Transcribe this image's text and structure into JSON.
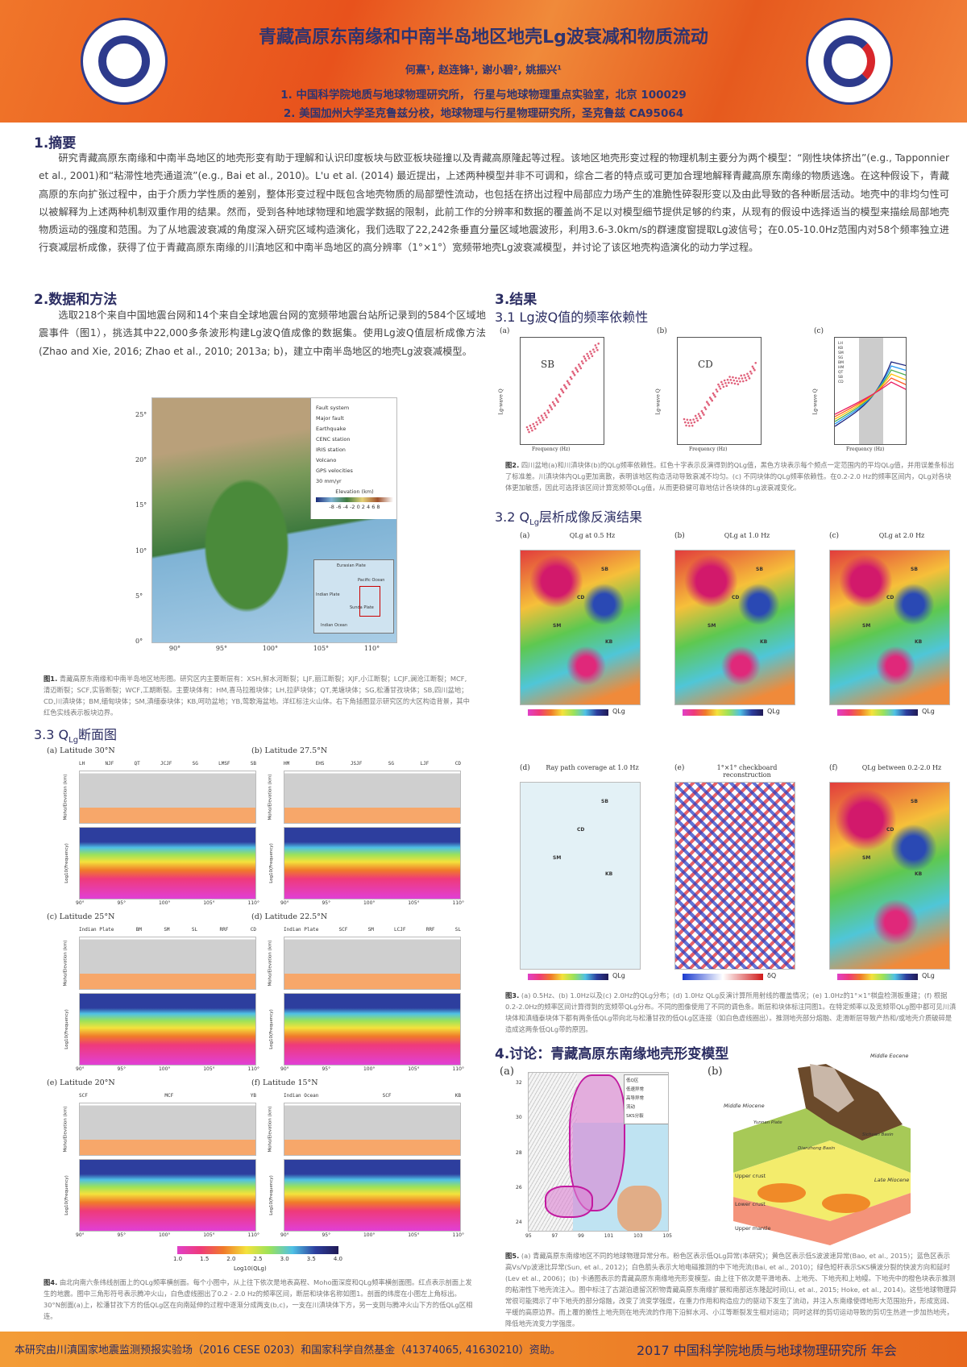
{
  "header": {
    "title": "青藏高原东南缘和中南半岛地区地壳Lg波衰减和物质流动",
    "authors": "何熹¹, 赵连锋¹, 谢小碧², 姚振兴¹",
    "affiliation1": "1. 中国科学院地质与地球物理研究所， 行星与地球物理重点实验室，北京 100029",
    "affiliation2": "2. 美国加州大学圣克鲁兹分校，地球物理与行星物理研究所，圣克鲁兹 CA95064",
    "logo_left": "中国科学院地质与地球物理研究所 INSTITUTE OF GEOLOGY AND GEOPHYSICS CAS",
    "logo_right": "中国科学院地球与行星物理重点实验室 Key Laboratory of Earth and Planetary Physics CAS"
  },
  "abstract": {
    "heading": "1.摘要",
    "text": "研究青藏高原东南缘和中南半岛地区的地壳形变有助于理解和认识印度板块与欧亚板块碰撞以及青藏高原隆起等过程。该地区地壳形变过程的物理机制主要分为两个模型：“刚性块体挤出”(e.g., Tapponnier et al., 2001)和“粘滞性地壳通道流”(e.g., Bai et al., 2010)。L'u et al. (2014) 最近提出，上述两种模型并非不可调和，综合二者的特点或可更加合理地解释青藏高原东南缘的物质逃逸。在这种假设下，青藏高原的东向扩张过程中，由于介质力学性质的差别，整体形变过程中既包含地壳物质的局部塑性流动，也包括在挤出过程中局部应力场产生的准脆性碎裂形变以及由此导致的各种断层活动。地壳中的非均匀性可以被解释为上述两种机制双重作用的结果。然而，受到各种地球物理和地震学数据的限制，此前工作的分辨率和数据的覆盖尚不足以对模型细节提供足够的约束，从现有的假设中选择适当的模型来描绘局部地壳物质运动的强度和范围。为了从地震波衰减的角度深入研究区域构造演化，我们选取了22,242条垂直分量区域地震波形，利用3.6-3.0km/s的群速度窗提取Lg波信号；在0.05-10.0Hz范围内对58个频率独立进行衰减层析成像，获得了位于青藏高原东南缘的川滇地区和中南半岛地区的高分辨率（1°×1°）宽频带地壳Lg波衰减模型，并讨论了该区地壳构造演化的动力学过程。"
  },
  "methods": {
    "heading": "2.数据和方法",
    "text": "选取218个来自中国地震台网和14个来自全球地震台网的宽频带地震台站所记录到的584个区域地震事件（图1），挑选其中22,000多条波形构建Lg波Q值成像的数据集。使用Lg波Q值层析成像方法(Zhao and Xie, 2016; Zhao et al., 2010; 2013a; b)，建立中南半岛地区的地壳Lg波衰减模型。"
  },
  "fig1": {
    "legend": [
      "Fault system",
      "Major fault",
      "Earthquake",
      "CENC station",
      "IRIS station",
      "Volcano",
      "GPS velocities"
    ],
    "elev_label": "Elevation (km)",
    "elev_ticks": "-8 -6 -4 -2 0 2 4 6 8",
    "gps_scale": "30 mm/yr",
    "lon_ticks": [
      "90°",
      "95°",
      "100°",
      "105°",
      "110°"
    ],
    "lat_ticks": [
      "25°",
      "20°",
      "15°",
      "10°",
      "5°",
      "0°"
    ],
    "inset_labels": [
      "Eurasian Plate",
      "Indian Plate",
      "Sunda Plate",
      "Pacific Ocean",
      "Indian Ocean"
    ],
    "caption_label": "图1.",
    "caption": "青藏高原东南缘和中南半岛地区地形图。研究区内主要断层有：XSH,鲜水河断裂；LJF,丽江断裂；XJF,小江断裂；LCJF,澜沧江断裂；MCF,清迈断裂；SCF,实皆断裂；WCF,工期断裂。主要块体有：HM,喜马拉雅块体；LH,拉萨块体；QT,羌塘块体；SG,松潘甘孜块体；SB,四川盆地；CD,川滇块体；BM,缅甸块体；SM,滇缅泰块体；KB,呵叻盆地；YB,莺歌海盆地。洋红标注火山体。右下角插图显示研究区的大区构造背景，其中红色实线表示板块边界。"
  },
  "results": {
    "heading": "3.结果",
    "sub1": "3.1 Lg波Q值的频率依赖性",
    "sub2_prefix": "3.2 Q",
    "sub2_sub": "Lg",
    "sub2_suffix": "层析成像反演结果",
    "sub3_prefix": "3.3 Q",
    "sub3_sub": "Lg",
    "sub3_suffix": "断面图"
  },
  "fig2": {
    "panels": [
      {
        "tag": "(a)",
        "name": "SB"
      },
      {
        "tag": "(b)",
        "name": "CD"
      },
      {
        "tag": "(c)",
        "name": ""
      }
    ],
    "ylabel": "Lg-wave Q",
    "xlabel": "Frequency (Hz)",
    "legend_c": [
      "LH",
      "KB",
      "SM",
      "SG",
      "BM",
      "HM",
      "QT",
      "SB",
      "CD"
    ],
    "caption_label": "图2.",
    "caption": "四川盆地(a)和川滇块体(b)的QLg频率依赖性。红色十字表示反演得到的QLg值，黑色方块表示每个频点一定范围内的平均QLg值，并用误差条标出了标准差。川滇块体内QLg更加离散，表明该地区构造活动导致衰减不均匀。(c) 不同块体的QLg频率依赖性。在0.2-2.0 Hz的频率区间内，QLg对各块体更加敏感，因此可选择该区间计算宽频带QLg值，从而更稳健可靠地估计各块体的Lg波衰减变化。"
  },
  "fig3": {
    "panels": [
      {
        "tag": "(a)",
        "title": "QLg at 0.5 Hz"
      },
      {
        "tag": "(b)",
        "title": "QLg at 1.0 Hz"
      },
      {
        "tag": "(c)",
        "title": "QLg at 2.0 Hz"
      },
      {
        "tag": "(d)",
        "title": "Ray path coverage at 1.0 Hz"
      },
      {
        "tag": "(e)",
        "title": "1°×1° checkboard reconstruction"
      },
      {
        "tag": "(f)",
        "title": "QLg between 0.2-2.0 Hz"
      }
    ],
    "block_labels": [
      "SB",
      "CD",
      "SM",
      "KB"
    ],
    "cbar_label": "QLg",
    "dq_label": "δQ",
    "caption_label": "图3.",
    "caption": "(a) 0.5Hz、(b) 1.0Hz以及(c) 2.0Hz的QLg分布；(d) 1.0Hz QLg反演计算所用射线的覆盖情况；(e) 1.0Hz的1°×1°棋盘检测板重建；(f) 根据0.2-2.0Hz的频率区间计算得到的宽频带QLg分布。不同的图像使用了不同的调色条。断层和块体标注同图1。在特定频率以及宽频带QLg图中都可见川滇块体和滇缅泰块体下都有两条低QLg带向北与松潘甘孜的低QLg区连接（如白色虚线圈出）。推测地壳部分熔融、走滑断层导致产热和/或地壳介质破碎是造成这两条低QLg带的原因。"
  },
  "fig4": {
    "panels": [
      {
        "tag": "(a)",
        "title": "Latitude 30°N",
        "labels": [
          "LH",
          "NJF",
          "QT",
          "JCJF",
          "SG",
          "LMSF",
          "SB"
        ]
      },
      {
        "tag": "(b)",
        "title": "Latitude 27.5°N",
        "labels": [
          "HM",
          "EHS",
          "JSJF",
          "SG",
          "LJF",
          "CD"
        ]
      },
      {
        "tag": "(c)",
        "title": "Latitude 25°N",
        "labels": [
          "Indian Plate",
          "BM",
          "SM",
          "SL",
          "RRF",
          "CD"
        ]
      },
      {
        "tag": "(d)",
        "title": "Latitude 22.5°N",
        "labels": [
          "Indian Plate",
          "SCF",
          "SM",
          "LCJF",
          "RRF",
          "SL"
        ]
      },
      {
        "tag": "(e)",
        "title": "Latitude 20°N",
        "labels": [
          "SCF",
          "MCF",
          "YB"
        ]
      },
      {
        "tag": "(f)",
        "title": "Latitude 15°N",
        "labels": [
          "Indian Ocean",
          "SCF",
          "KB"
        ]
      }
    ],
    "ylabel_top": "Moho/Elevation (km)",
    "ylabel_bottom": "Log10(Frequency)",
    "lon_ticks": [
      "90°",
      "95°",
      "100°",
      "105°",
      "110°"
    ],
    "cbar_ticks": [
      "1.0",
      "1.5",
      "2.0",
      "2.5",
      "3.0",
      "3.5",
      "4.0"
    ],
    "cbar_label": "Log10(QLg)",
    "caption_label": "图4.",
    "caption": "由北向南六条纬线剖面上的QLg频率横剖面。每个小图中，从上往下依次是地表高程、Moho面深度和QLg频率横剖面图。红点表示剖面上发生的地震。图中三角形符号表示腾冲火山，白色虚线圈出了0.2 - 2.0 Hz的频率区间，断层和块体名称如图1。剖面的纬度在小图左上角标出。30°N剖面(a)上，松潘甘孜下方的低QLg区在向南延伸的过程中逐渐分成两支(b,c)，一支在川滇块体下方，另一支则与腾冲火山下方的低QLg区相连。"
  },
  "discussion": {
    "heading": "4.讨论：青藏高原东南缘地壳形变模型"
  },
  "fig5": {
    "tag_a": "(a)",
    "tag_b": "(b)",
    "legend_a": [
      "低Q区",
      "低速异常",
      "高导异常",
      "流动",
      "SKS分裂"
    ],
    "lat_ticks": [
      "32",
      "30",
      "28",
      "26",
      "24"
    ],
    "lon_ticks": [
      "95",
      "97",
      "99",
      "101",
      "103",
      "105"
    ],
    "model_labels": [
      "Middle Eocene",
      "Middle Miocene",
      "Late Miocene",
      "Upper crust",
      "Lower crust",
      "Upper mantle",
      "Sichuan Basin",
      "Dianzhong Basin",
      "Yunnan Plate"
    ],
    "caption_label": "图5.",
    "caption": "(a) 青藏高原东南缘地区不同的地球物理异常分布。粉色区表示低QLg异常(本研究)；黄色区表示低S波波速异常(Bao, et al., 2015)；蓝色区表示高Vs/Vp波速比异常(Sun, et al., 2012)；白色箭头表示大地电磁推测的中下地壳流(Bai, et al., 2010)；绿色短杆表示SKS横波分裂的快波方向和延时(Lev et al., 2006)；(b) 卡通图表示的青藏高原东南缘地壳形变模型。由上往下依次是平滑地表、上地壳、下地壳和上地幔。下地壳中的橙色块表示推测的粘滞性下地壳流注入。图中标注了古湖泊遗留沉积物青藏高原东南缘扩展和南部远东隆起时间(Li, et al., 2015; Hoke, et al., 2014)。这些地球物理异常很可能揭示了中下地壳的部分熔融，改变了流变学强度，在重力作用和构造应力的驱动下发生了流动，并注入东南缘使得地形大范围抬升，形成宽阔、平缓的高原边界。而上覆的脆性上地壳则在地壳流的作用下沿鲜水河、小江等断裂发生相对运动；同时这样的剪切运动导致的剪切生热进一步加热地壳，降低地壳流变力学强度。"
  },
  "footer": {
    "funding": "本研究由川滇国家地震监测预报实验场（2016 CESE 0203）和国家科学自然基金（41374065, 41630210）资助。",
    "meeting": "2017 中国科学院地质与地球物理研究所 年会"
  },
  "colors": {
    "title": "#2e3470",
    "header_orange": "#e8521c",
    "footer_orange": "#ef8a2c"
  }
}
